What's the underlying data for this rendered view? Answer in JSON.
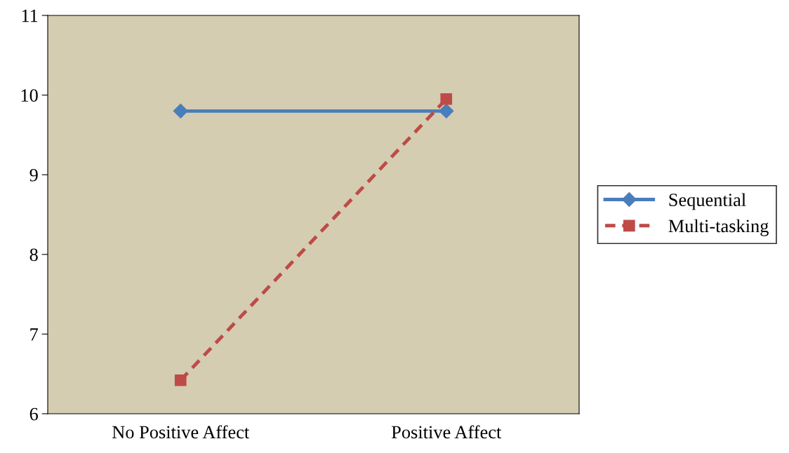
{
  "chart_data": {
    "type": "line",
    "categories": [
      "No Positive Affect",
      "Positive Affect"
    ],
    "series": [
      {
        "name": "Sequential",
        "color": "#4a7ebb",
        "values": [
          9.8,
          9.8
        ],
        "marker": "diamond",
        "line_style": "solid"
      },
      {
        "name": "Multi-tasking",
        "color": "#be4b48",
        "values": [
          6.42,
          9.95
        ],
        "marker": "square",
        "line_style": "dashed"
      }
    ],
    "ylim": [
      6,
      11
    ],
    "yticks": [
      6,
      7,
      8,
      9,
      10,
      11
    ],
    "grid": false,
    "legend": "right"
  }
}
